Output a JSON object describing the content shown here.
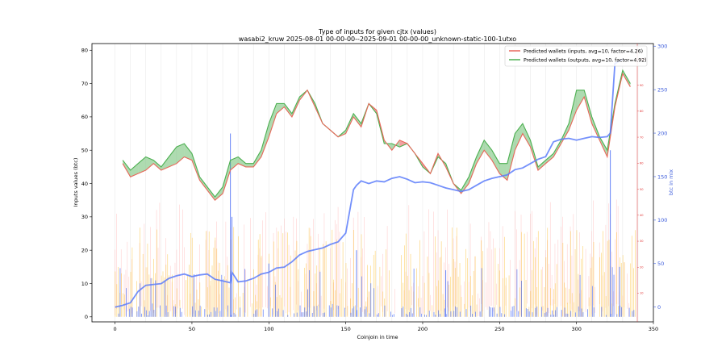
{
  "chart_data": {
    "type": "line",
    "title": "Type of inputs for given cjtx (values)",
    "subtitle": "wasabi2_kruw 2025-08-01 00-00-00--2025-09-01 00-00-00_unknown-static-100-1utxo",
    "xlabel": "Coinjoin in time",
    "ylabel": "Inputs values (btc)",
    "y2label": "btc in mix",
    "xlim": [
      -15,
      350
    ],
    "ylim": [
      -1.5,
      82
    ],
    "y2lim": [
      -17,
      303
    ],
    "y3lim": [
      -1,
      106
    ],
    "xticks": [
      0,
      50,
      100,
      150,
      200,
      250,
      300,
      350
    ],
    "yticks": [
      0,
      10,
      20,
      30,
      40,
      50,
      60,
      70,
      80
    ],
    "y2ticks": [
      0,
      50,
      100,
      150,
      200,
      250,
      300
    ],
    "y3ticks": [
      10,
      20,
      30,
      40,
      50,
      60,
      70,
      80,
      90,
      100
    ],
    "grid": "vertical-x",
    "legend_position": "top-right",
    "colors": {
      "inputs_line": "#e8675a",
      "outputs_line": "#4caf50",
      "fill_green": "#4caf50",
      "fill_red": "#e03131",
      "mix_line": "#5c7cfa",
      "bars_blue": "#4c6ef5",
      "bars_orange": "#fab005",
      "bars_pink": "#ffa8a8",
      "right_axis": "#3b5bdb",
      "red_axis": "#e03131"
    },
    "series": [
      {
        "name": "Predicted wallets (inputs, avg=10, factor=4.26)",
        "axis": "left",
        "x": [
          5,
          10,
          15,
          20,
          25,
          30,
          35,
          40,
          45,
          50,
          55,
          60,
          65,
          70,
          75,
          80,
          85,
          90,
          95,
          100,
          105,
          110,
          115,
          120,
          125,
          130,
          135,
          140,
          145,
          150,
          155,
          160,
          165,
          170,
          175,
          180,
          185,
          190,
          195,
          200,
          205,
          210,
          215,
          220,
          225,
          230,
          235,
          240,
          245,
          250,
          255,
          260,
          265,
          270,
          275,
          280,
          285,
          290,
          295,
          300,
          305,
          310,
          315,
          320,
          325,
          330,
          335
        ],
        "values": [
          46,
          42,
          43,
          44,
          46,
          44,
          45,
          46,
          48,
          47,
          41,
          38,
          35,
          37,
          44,
          46,
          45,
          45,
          48,
          54,
          61,
          63,
          60,
          65,
          68,
          63,
          58,
          56,
          54,
          55,
          60,
          57,
          64,
          62,
          53,
          50,
          53,
          52,
          49,
          46,
          43,
          49,
          45,
          40,
          37,
          40,
          46,
          50,
          47,
          43,
          41,
          50,
          55,
          51,
          44,
          46,
          48,
          52,
          56,
          62,
          66,
          58,
          53,
          48,
          63,
          73,
          69
        ]
      },
      {
        "name": "Predicted wallets (outputs, avg=10, factor=4.92)",
        "axis": "left",
        "x": [
          5,
          10,
          15,
          20,
          25,
          30,
          35,
          40,
          45,
          50,
          55,
          60,
          65,
          70,
          75,
          80,
          85,
          90,
          95,
          100,
          105,
          110,
          115,
          120,
          125,
          130,
          135,
          140,
          145,
          150,
          155,
          160,
          165,
          170,
          175,
          180,
          185,
          190,
          195,
          200,
          205,
          210,
          215,
          220,
          225,
          230,
          235,
          240,
          245,
          250,
          255,
          260,
          265,
          270,
          275,
          280,
          285,
          290,
          295,
          300,
          305,
          310,
          315,
          320,
          325,
          330,
          335
        ],
        "values": [
          47,
          44,
          46,
          48,
          47,
          45,
          48,
          51,
          52,
          49,
          42,
          39,
          36,
          39,
          47,
          48,
          46,
          46,
          50,
          58,
          64,
          64,
          61,
          66,
          68,
          64,
          58,
          56,
          54,
          56,
          61,
          58,
          64,
          61,
          52,
          52,
          51,
          52,
          49,
          45,
          43,
          48,
          46,
          40,
          38,
          42,
          48,
          53,
          50,
          46,
          46,
          55,
          58,
          53,
          45,
          47,
          49,
          53,
          58,
          68,
          68,
          60,
          54,
          50,
          64,
          74,
          70
        ]
      },
      {
        "name": "",
        "axis": "right",
        "x": [
          0,
          5,
          10,
          15,
          20,
          25,
          30,
          35,
          40,
          45,
          50,
          55,
          60,
          65,
          70,
          75,
          76,
          80,
          85,
          90,
          95,
          100,
          105,
          110,
          115,
          120,
          125,
          130,
          135,
          140,
          145,
          150,
          155,
          157,
          160,
          165,
          170,
          175,
          180,
          185,
          190,
          195,
          200,
          205,
          210,
          215,
          220,
          225,
          230,
          235,
          240,
          245,
          250,
          255,
          260,
          265,
          270,
          275,
          280,
          285,
          290,
          295,
          300,
          305,
          310,
          315,
          320,
          322,
          325,
          330
        ],
        "values": [
          0,
          2,
          5,
          18,
          25,
          26,
          27,
          33,
          36,
          38,
          35,
          37,
          38,
          32,
          30,
          28,
          40,
          29,
          30,
          33,
          38,
          40,
          45,
          46,
          52,
          60,
          64,
          66,
          68,
          72,
          75,
          85,
          135,
          140,
          145,
          142,
          145,
          144,
          148,
          150,
          147,
          143,
          144,
          143,
          140,
          137,
          135,
          133,
          135,
          140,
          145,
          148,
          150,
          152,
          158,
          160,
          165,
          170,
          173,
          190,
          193,
          194,
          192,
          194,
          196,
          195,
          196,
          200,
          280,
          285
        ]
      }
    ]
  }
}
